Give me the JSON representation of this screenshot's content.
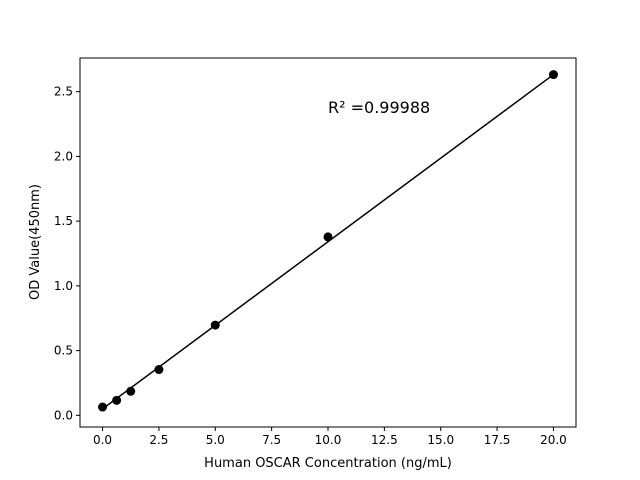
{
  "chart_data": {
    "type": "scatter",
    "title": "",
    "xlabel": "Human OSCAR Concentration (ng/mL)",
    "ylabel": "OD Value(450nm)",
    "xlim": [
      -1.0,
      21.0
    ],
    "ylim": [
      -0.09,
      2.76
    ],
    "xticks": [
      0.0,
      2.5,
      5.0,
      7.5,
      10.0,
      12.5,
      15.0,
      17.5,
      20.0
    ],
    "xtick_labels": [
      "0.0",
      "2.5",
      "5.0",
      "7.5",
      "10.0",
      "12.5",
      "15.0",
      "17.5",
      "20.0"
    ],
    "yticks": [
      0.0,
      0.5,
      1.0,
      1.5,
      2.0,
      2.5
    ],
    "ytick_labels": [
      "0.0",
      "0.5",
      "1.0",
      "1.5",
      "2.0",
      "2.5"
    ],
    "grid": false,
    "x": [
      0,
      0.625,
      1.25,
      2.5,
      5,
      10,
      20
    ],
    "y": [
      0.064,
      0.116,
      0.186,
      0.354,
      0.697,
      1.378,
      2.632
    ],
    "fit_line": {
      "x": [
        0,
        20
      ],
      "y": [
        0.05,
        2.632
      ]
    },
    "annotation": {
      "text": "R² =0.99988",
      "x": 10,
      "y": 2.38
    },
    "colors": {
      "points": "#000000",
      "line": "#000000"
    }
  }
}
